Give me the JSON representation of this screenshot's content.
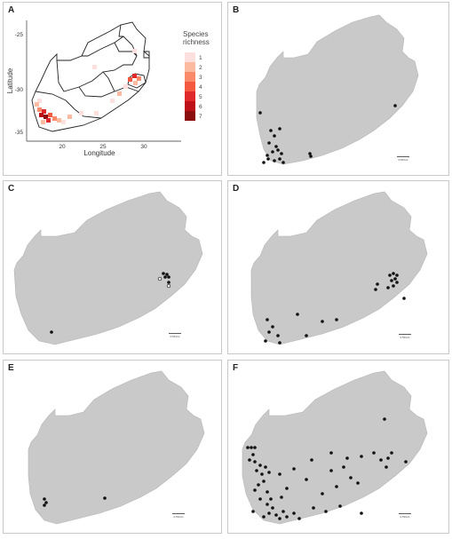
{
  "panels": [
    {
      "label": "A"
    },
    {
      "label": "B"
    },
    {
      "label": "C"
    },
    {
      "label": "D"
    },
    {
      "label": "E"
    },
    {
      "label": "F"
    }
  ],
  "panel_a": {
    "xlabel": "Longitude",
    "ylabel": "Latitude",
    "x_ticks": [
      "20",
      "25",
      "30"
    ],
    "y_ticks": [
      "-25",
      "-30",
      "-35"
    ],
    "legend_title_line1": "Species",
    "legend_title_line2": "richness",
    "legend_values": [
      "1",
      "2",
      "3",
      "4",
      "5",
      "6",
      "7"
    ],
    "legend_colors": [
      "#fde0dd",
      "#fcbba1",
      "#fb8a6a",
      "#f4593f",
      "#e0292b",
      "#bd1019",
      "#8c0d0d"
    ]
  },
  "map_colors": {
    "land": "#c9c9c9",
    "border": "#b0b0b0",
    "point": "#111111",
    "outline": "#222222"
  },
  "scale_bar_label": "0 50 km"
}
